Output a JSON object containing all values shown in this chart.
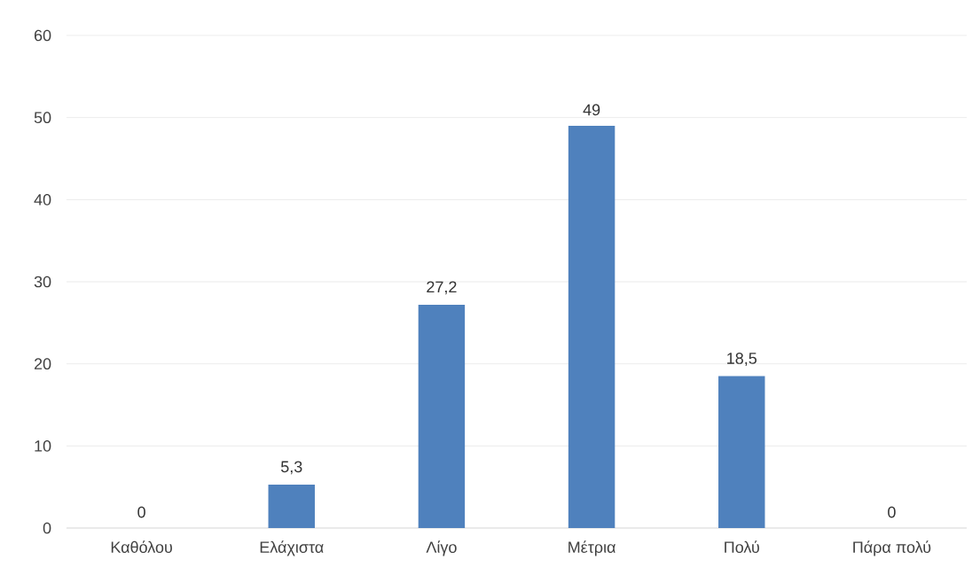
{
  "chart_data": {
    "type": "bar",
    "categories": [
      "Καθόλου",
      "Ελάχιστα",
      "Λίγο",
      "Μέτρια",
      "Πολύ",
      "Πάρα πολύ"
    ],
    "values": [
      0,
      5.3,
      27.2,
      49,
      18.5,
      0
    ],
    "value_labels": [
      "0",
      "5,3",
      "27,2",
      "49",
      "18,5",
      "0"
    ],
    "color": "#4f81bd",
    "ylim": [
      0,
      60
    ],
    "yticks": [
      0,
      10,
      20,
      30,
      40,
      50,
      60
    ],
    "grid": "y"
  }
}
